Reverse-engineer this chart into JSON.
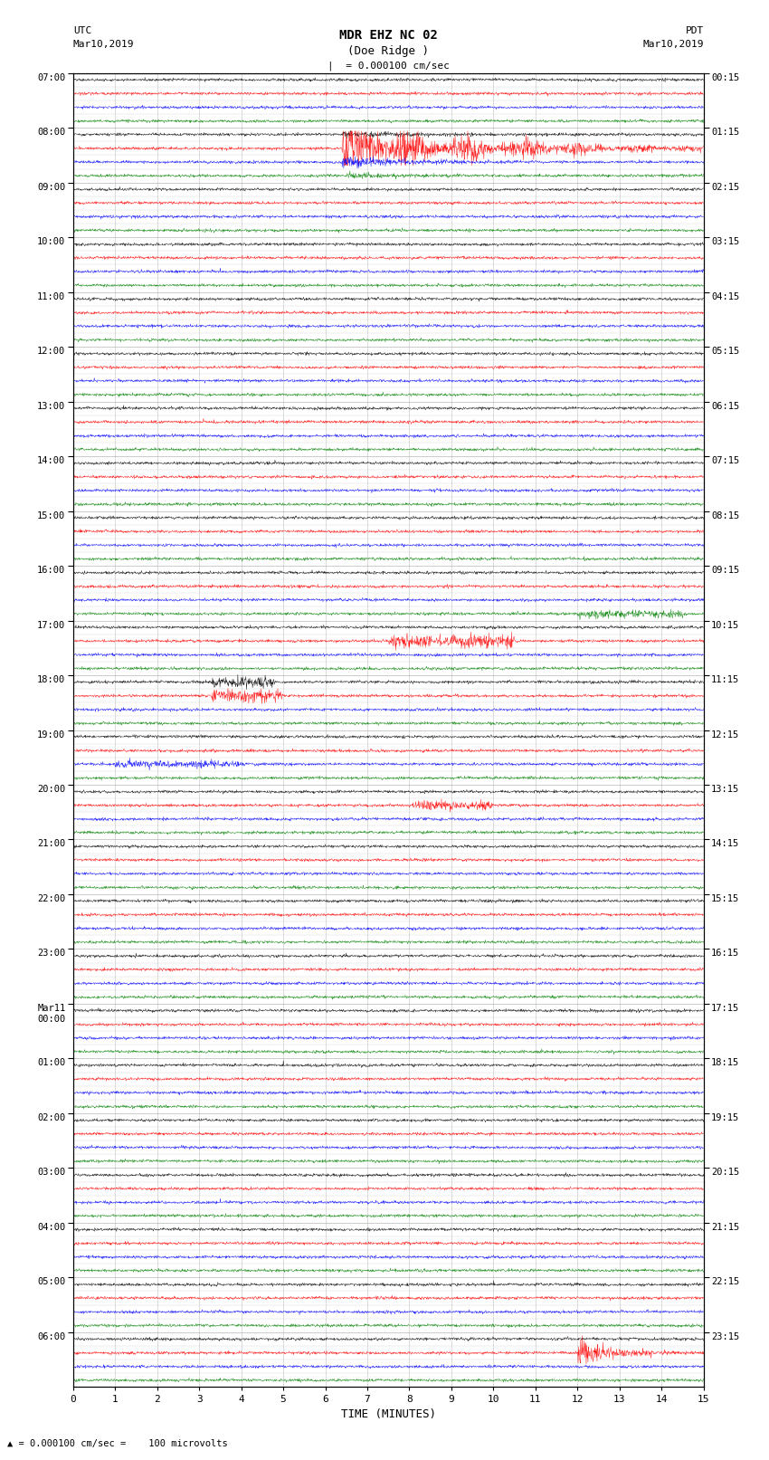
{
  "title_line1": "MDR EHZ NC 02",
  "title_line2": "(Doe Ridge )",
  "scale_label": "= 0.000100 cm/sec",
  "left_header_line1": "UTC",
  "left_header_line2": "Mar10,2019",
  "right_header_line1": "PDT",
  "right_header_line2": "Mar10,2019",
  "footer_note": "= 0.000100 cm/sec =    100 microvolts",
  "xlabel": "TIME (MINUTES)",
  "utc_hour_labels": [
    "07:00",
    "08:00",
    "09:00",
    "10:00",
    "11:00",
    "12:00",
    "13:00",
    "14:00",
    "15:00",
    "16:00",
    "17:00",
    "18:00",
    "19:00",
    "20:00",
    "21:00",
    "22:00",
    "23:00",
    "Mar11\n00:00",
    "01:00",
    "02:00",
    "03:00",
    "04:00",
    "05:00",
    "06:00"
  ],
  "pdt_hour_labels": [
    "00:15",
    "01:15",
    "02:15",
    "03:15",
    "04:15",
    "05:15",
    "06:15",
    "07:15",
    "08:15",
    "09:15",
    "10:15",
    "11:15",
    "12:15",
    "13:15",
    "14:15",
    "15:15",
    "16:15",
    "17:15",
    "18:15",
    "19:15",
    "20:15",
    "21:15",
    "22:15",
    "23:15"
  ],
  "n_hours": 24,
  "traces_per_hour": 4,
  "trace_colors": [
    "black",
    "red",
    "blue",
    "green"
  ],
  "xmin": 0,
  "xmax": 15,
  "background": "white",
  "grid_color": "#999999",
  "fig_width": 8.5,
  "fig_height": 16.13,
  "dpi": 100,
  "noise_amplitude": 0.12,
  "n_pts": 1800
}
